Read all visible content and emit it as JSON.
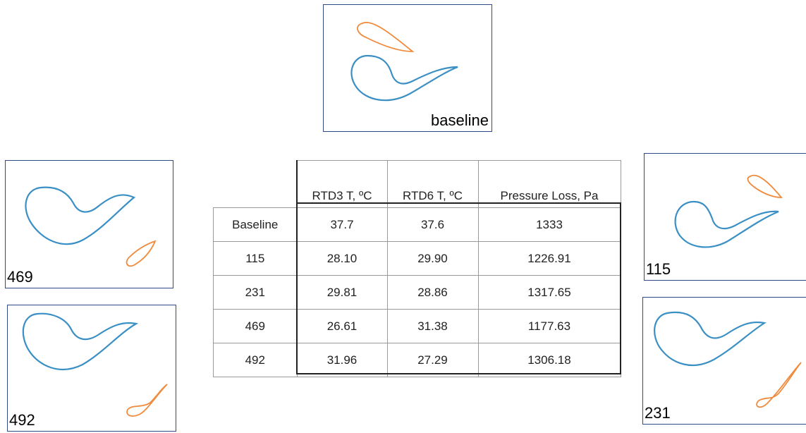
{
  "panels": {
    "baseline": "baseline",
    "p469": "469",
    "p492": "492",
    "p115": "115",
    "p231": "231"
  },
  "table": {
    "header": [
      "RTD3 T, ºC",
      "RTD6 T, ºC",
      "Pressure Loss, Pa"
    ],
    "rows": [
      [
        "Baseline",
        "37.7",
        "37.6",
        "1333"
      ],
      [
        "115",
        "28.10",
        "29.90",
        "1226.91"
      ],
      [
        "231",
        "29.81",
        "28.86",
        "1317.65"
      ],
      [
        "469",
        "26.61",
        "31.38",
        "1177.63"
      ],
      [
        "492",
        "31.96",
        "27.29",
        "1306.18"
      ]
    ]
  }
}
